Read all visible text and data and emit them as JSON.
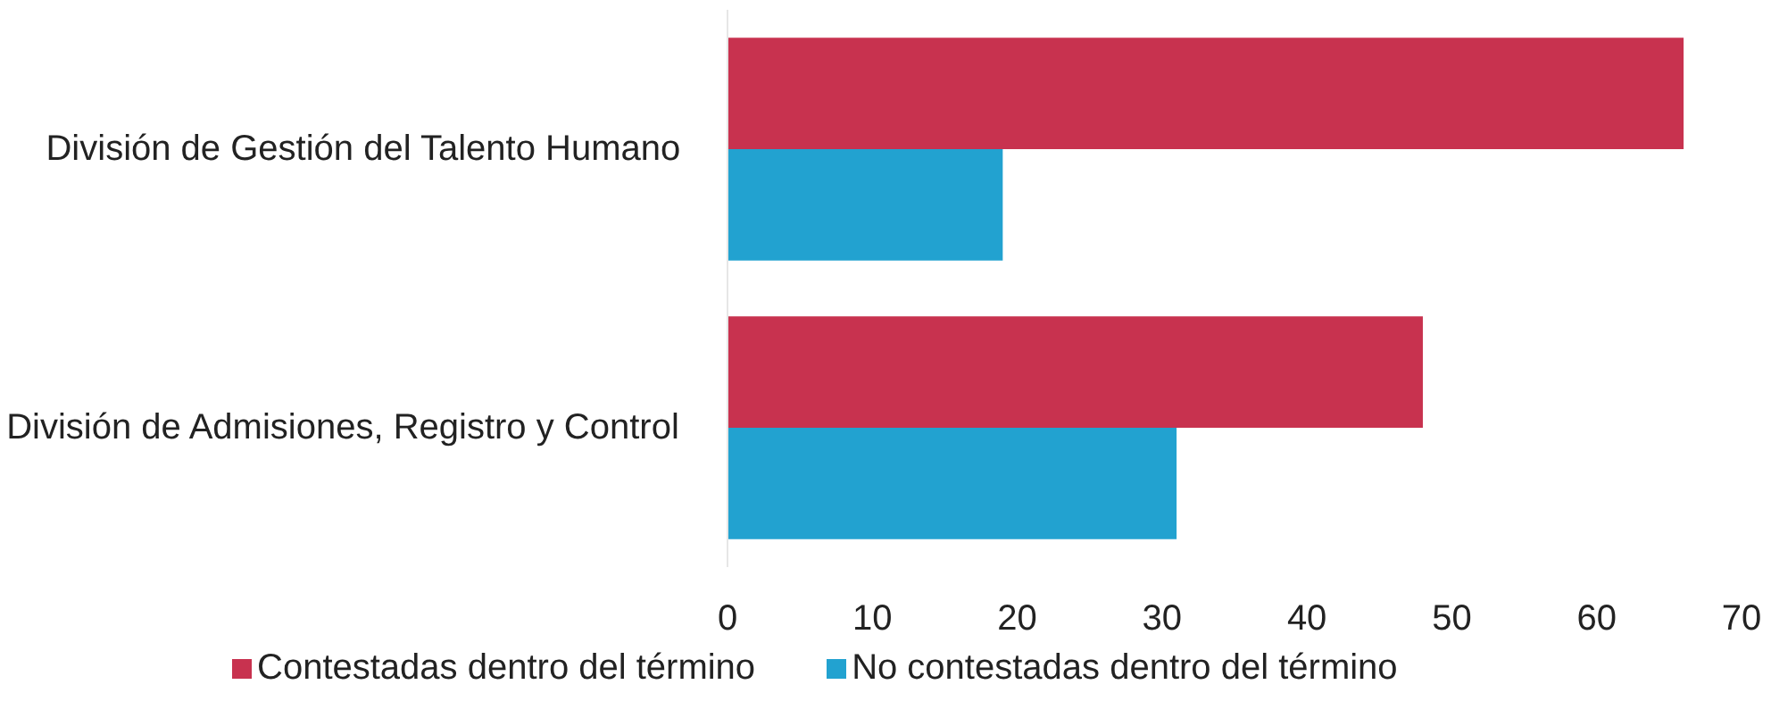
{
  "chart_data": {
    "type": "bar",
    "orientation": "horizontal",
    "categories": [
      "División de Gestión del Talento Humano",
      "División de Admisiones, Registro y Control"
    ],
    "series": [
      {
        "name": "Contestadas dentro del término",
        "color": "#c8324f",
        "values": [
          66,
          48
        ]
      },
      {
        "name": "No contestadas dentro del término",
        "color": "#22a2d0",
        "values": [
          19,
          31
        ]
      }
    ],
    "xlim": [
      0,
      70
    ],
    "xticks": [
      0,
      10,
      20,
      30,
      40,
      50,
      60,
      70
    ],
    "grid": false,
    "legend": "bottom"
  }
}
